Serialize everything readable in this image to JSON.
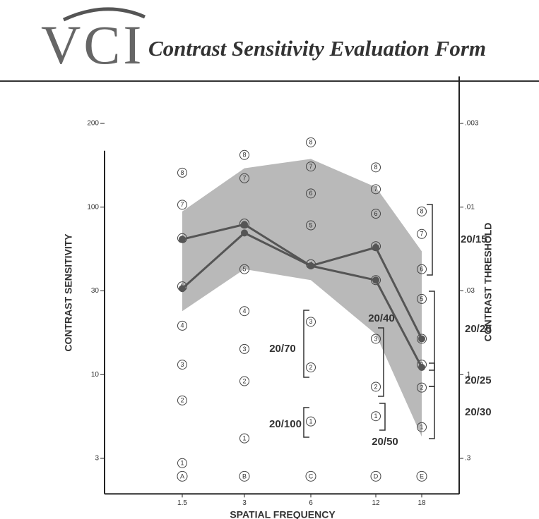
{
  "header": {
    "logo": "VCI",
    "title": "Contrast Sensitivity Evaluation Form"
  },
  "chart_data": {
    "type": "line",
    "x_label": "SPATIAL FREQUENCY",
    "y_label": "CONTRAST SENSITIVITY",
    "y2_label": "CONTRAST THRESHOLD",
    "categories": [
      "1.5",
      "3",
      "6",
      "12",
      "18"
    ],
    "ylog": true,
    "ylim": [
      1.8,
      250
    ],
    "yticks": [
      200,
      100,
      30,
      10,
      3
    ],
    "y2lim": [
      0.48,
      0.002
    ],
    "y2ticks": [
      {
        "value": 0.003,
        "label": ".003"
      },
      {
        "value": 0.01,
        "label": ".01"
      },
      {
        "value": 0.03,
        "label": ".03"
      },
      {
        "value": 0.1,
        "label": ".1"
      },
      {
        "value": 0.3,
        "label": ".3"
      }
    ],
    "band": {
      "color": "#a8a8a8",
      "upper": [
        94,
        138,
        149,
        118,
        53
      ],
      "lower": [
        23,
        41,
        35,
        17,
        4.1
      ]
    },
    "series": [
      {
        "color": "#555555",
        "values": [
          63,
          78,
          43,
          56,
          16
        ]
      },
      {
        "color": "#555555",
        "values": [
          31,
          69,
          43,
          35,
          11
        ]
      }
    ],
    "grades": [
      {
        "labels": [
          "8",
          "7",
          "6",
          "5",
          "4",
          "3",
          "2",
          "1"
        ],
        "values": [
          133,
          102,
          64,
          32,
          19,
          11.4,
          6.9,
          2.8
        ]
      },
      {
        "labels": [
          "8",
          "7",
          "6",
          "5",
          "4",
          "3",
          "2",
          "1"
        ],
        "values": [
          154,
          127,
          79,
          41,
          23,
          14,
          9.1,
          4.0
        ]
      },
      {
        "labels": [
          "8",
          "7",
          "6",
          "5",
          "4",
          "3",
          "2",
          "1"
        ],
        "values": [
          171,
          140,
          112,
          77,
          44,
          20,
          11,
          5.1
        ]
      },
      {
        "labels": [
          "8",
          "7",
          "6",
          "5",
          "4",
          "3",
          "2",
          "1"
        ],
        "values": [
          139,
          116,
          91,
          57,
          35,
          16,
          8.4,
          5.5
        ]
      },
      {
        "labels": [
          "8",
          "7",
          "6",
          "5",
          "4",
          "3",
          "2",
          "1"
        ],
        "values": [
          94,
          68,
          41,
          27,
          16,
          11.4,
          8.3,
          4.7
        ]
      }
    ],
    "letters": [
      "A",
      "B",
      "C",
      "D",
      "E"
    ],
    "acuity": [
      "20/15",
      "20/20",
      "20/25",
      "20/30",
      "20/40",
      "20/50",
      "20/70",
      "20/100"
    ]
  }
}
